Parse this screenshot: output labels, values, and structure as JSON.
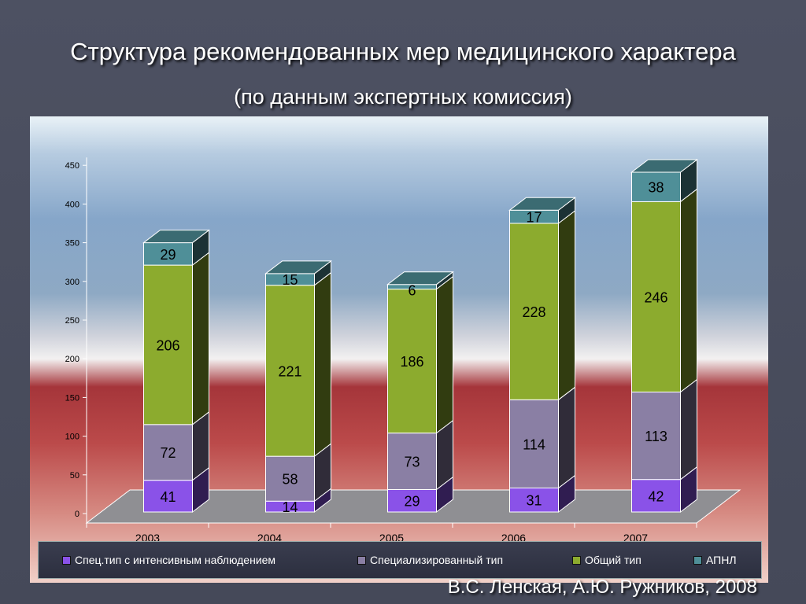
{
  "slide": {
    "title": "Структура рекомендованных мер медицинского характера",
    "subtitle": "(по данным экспертных комиссия)",
    "footer": "В.С. Ленская, А.Ю. Ружников, 2008"
  },
  "chart_data": {
    "type": "bar",
    "stacked": true,
    "three_d": true,
    "categories": [
      "2003",
      "2004",
      "2005",
      "2006",
      "2007"
    ],
    "series": [
      {
        "name": "Спец.тип с интенсивным наблюдением",
        "values": [
          41,
          14,
          29,
          31,
          42
        ],
        "color": "#8a52e8"
      },
      {
        "name": "Специализированный тип",
        "values": [
          72,
          58,
          73,
          114,
          113
        ],
        "color": "#8a7fa4"
      },
      {
        "name": "Общий тип",
        "values": [
          206,
          221,
          186,
          228,
          246
        ],
        "color": "#8cab2e"
      },
      {
        "name": "АПНЛ",
        "values": [
          29,
          15,
          6,
          17,
          38
        ],
        "color": "#4f8f98"
      }
    ],
    "y_ticks": [
      "0",
      "50",
      "100",
      "150",
      "200",
      "250",
      "300",
      "350",
      "400",
      "450"
    ],
    "ylim": [
      0,
      450
    ],
    "legend_position": "bottom"
  }
}
